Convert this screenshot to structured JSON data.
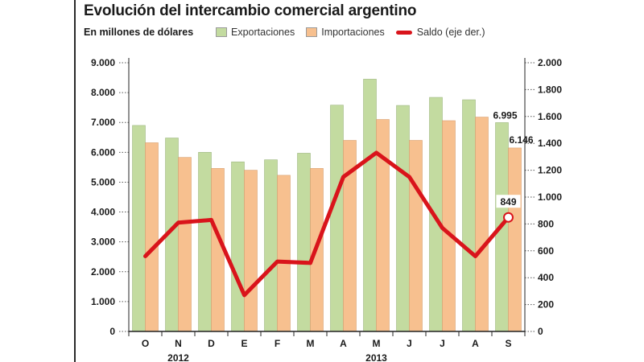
{
  "chart_data": {
    "type": "bar",
    "title": "Evolución del intercambio comercial argentino",
    "subtitle": "En millones de dólares",
    "categories": [
      "O",
      "N",
      "D",
      "E",
      "F",
      "M",
      "A",
      "M",
      "J",
      "J",
      "A",
      "S"
    ],
    "year_labels": [
      {
        "label": "2012",
        "category_index": 1
      },
      {
        "label": "2013",
        "category_index": 7
      }
    ],
    "series": [
      {
        "name": "Exportaciones",
        "kind": "bar",
        "axis": "left",
        "color": "#c3dba0",
        "values": [
          6900,
          6480,
          6000,
          5680,
          5750,
          5970,
          7580,
          8450,
          7570,
          7840,
          7760,
          6995
        ]
      },
      {
        "name": "Importaciones",
        "kind": "bar",
        "axis": "left",
        "color": "#f7c08f",
        "values": [
          6320,
          5830,
          5460,
          5400,
          5230,
          5460,
          6400,
          7100,
          6400,
          7060,
          7180,
          6146
        ]
      },
      {
        "name": "Saldo (eje der.)",
        "kind": "line",
        "axis": "right",
        "color": "#d9141b",
        "values": [
          560,
          810,
          830,
          270,
          520,
          510,
          1150,
          1330,
          1150,
          770,
          560,
          849
        ]
      }
    ],
    "y_left": {
      "min": 0,
      "max": 9000,
      "ticks": [
        0,
        1000,
        2000,
        3000,
        4000,
        5000,
        6000,
        7000,
        8000,
        9000
      ],
      "tick_labels": [
        "0",
        "1.000",
        "2.000",
        "3.000",
        "4.000",
        "5.000",
        "6.000",
        "7.000",
        "8.000",
        "9.000"
      ]
    },
    "y_right": {
      "min": 0,
      "max": 2000,
      "ticks": [
        0,
        200,
        400,
        600,
        800,
        1000,
        1200,
        1400,
        1600,
        1800,
        2000
      ],
      "tick_labels": [
        "0",
        "200",
        "400",
        "600",
        "800",
        "1.000",
        "1.200",
        "1.400",
        "1.600",
        "1.800",
        "2.000"
      ]
    },
    "annotations": [
      {
        "text": "6.995",
        "series": "Exportaciones",
        "category_index": 11
      },
      {
        "text": "6.146",
        "series": "Importaciones",
        "category_index": 11
      },
      {
        "text": "849",
        "series": "Saldo (eje der.)",
        "category_index": 11
      }
    ],
    "legend_position": "top"
  }
}
